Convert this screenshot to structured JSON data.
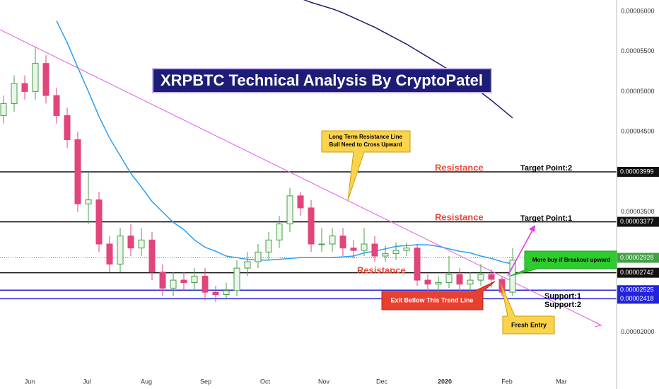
{
  "chart_data": {
    "type": "candlestick",
    "title": "XRPBTC Technical Analysis By CryptoPatel",
    "x_labels": [
      "Jun",
      "Jul",
      "Aug",
      "Sep",
      "Oct",
      "Nov",
      "Dec",
      "2020",
      "Feb",
      "Mar"
    ],
    "open": [
      4.7e-05,
      4.85e-05,
      5.1e-05,
      5e-05,
      5.35e-05,
      4.95e-05,
      4.7e-05,
      4.4e-05,
      3.6e-05,
      3.65e-05,
      3.1e-05,
      2.85e-05,
      3.2e-05,
      3.05e-05,
      3.15e-05,
      2.75e-05,
      2.55e-05,
      2.65e-05,
      2.62e-05,
      2.7e-05,
      2.5e-05,
      2.47e-05,
      2.52e-05,
      2.8e-05,
      2.88e-05,
      3e-05,
      3.15e-05,
      3.35e-05,
      3.7e-05,
      3.55e-05,
      3.1e-05,
      3.1e-05,
      3.2e-05,
      3.05e-05,
      3.02e-05,
      3.1e-05,
      2.95e-05,
      2.98e-05,
      3.02e-05,
      3.05e-05,
      2.65e-05,
      2.6e-05,
      2.62e-05,
      2.72e-05,
      2.6e-05,
      2.65e-05,
      2.72e-05,
      2.66e-05,
      2.5e-05
    ],
    "high": [
      4.95e-05,
      5.2e-05,
      5.2e-05,
      5.55e-05,
      5.45e-05,
      5.05e-05,
      4.8e-05,
      4.5e-05,
      4e-05,
      3.75e-05,
      3.2e-05,
      3.3e-05,
      3.35e-05,
      3.3e-05,
      3.25e-05,
      2.85e-05,
      2.75e-05,
      2.75e-05,
      2.8e-05,
      2.8e-05,
      2.58e-05,
      2.62e-05,
      2.9e-05,
      3e-05,
      3.1e-05,
      3.25e-05,
      3.45e-05,
      3.8e-05,
      3.75e-05,
      3.65e-05,
      3.3e-05,
      3.3e-05,
      3.3e-05,
      3.15e-05,
      3.3e-05,
      3.2e-05,
      3.08e-05,
      3.12e-05,
      3.12e-05,
      3.1e-05,
      2.72e-05,
      2.7e-05,
      2.95e-05,
      2.8e-05,
      2.75e-05,
      2.85e-05,
      2.78e-05,
      2.7e-05,
      3.05e-05
    ],
    "low": [
      4.6e-05,
      4.75e-05,
      4.9e-05,
      4.9e-05,
      4.85e-05,
      4.6e-05,
      4.3e-05,
      3.5e-05,
      3.35e-05,
      3e-05,
      2.75e-05,
      2.75e-05,
      2.95e-05,
      2.95e-05,
      2.65e-05,
      2.45e-05,
      2.45e-05,
      2.52e-05,
      2.52e-05,
      2.4e-05,
      2.38e-05,
      2.42e-05,
      2.45e-05,
      2.7e-05,
      2.8e-05,
      2.9e-05,
      3.05e-05,
      3.25e-05,
      3.45e-05,
      3e-05,
      3e-05,
      3e-05,
      2.95e-05,
      2.92e-05,
      2.95e-05,
      2.88e-05,
      2.88e-05,
      2.9e-05,
      2.95e-05,
      2.58e-05,
      2.52e-05,
      2.52e-05,
      2.55e-05,
      2.52e-05,
      2.52e-05,
      2.58e-05,
      2.56e-05,
      2.45e-05,
      2.45e-05
    ],
    "close": [
      4.85e-05,
      5.1e-05,
      5e-05,
      5.35e-05,
      4.95e-05,
      4.7e-05,
      4.4e-05,
      3.6e-05,
      3.65e-05,
      3.1e-05,
      2.85e-05,
      3.2e-05,
      3.05e-05,
      3.15e-05,
      2.75e-05,
      2.55e-05,
      2.65e-05,
      2.62e-05,
      2.7e-05,
      2.5e-05,
      2.47e-05,
      2.52e-05,
      2.8e-05,
      2.88e-05,
      3e-05,
      3.15e-05,
      3.35e-05,
      3.7e-05,
      3.55e-05,
      3.1e-05,
      3.1e-05,
      3.2e-05,
      3.05e-05,
      3.02e-05,
      3.1e-05,
      2.95e-05,
      2.98e-05,
      3.02e-05,
      3.05e-05,
      2.65e-05,
      2.6e-05,
      2.62e-05,
      2.72e-05,
      2.6e-05,
      2.65e-05,
      2.72e-05,
      2.66e-05,
      2.5e-05,
      2.9e-05
    ],
    "up_color": "#4a9e4a",
    "down_color": "#e0457b",
    "ylim": [
      1.47e-05,
      6.14e-05
    ],
    "yticks": [
      {
        "value": 6e-05,
        "label": "0.00006000"
      },
      {
        "value": 5.5e-05,
        "label": "0.00005500"
      },
      {
        "value": 5e-05,
        "label": "0.00005000"
      },
      {
        "value": 4.5e-05,
        "label": "0.00004500"
      },
      {
        "value": 3.5e-05,
        "label": "0.00003500"
      },
      {
        "value": 2e-05,
        "label": "0.00002000"
      }
    ],
    "lines": [
      {
        "color": "#2a9df4",
        "values": [
          null,
          null,
          null,
          null,
          null,
          5.88e-05,
          5.61e-05,
          5.3e-05,
          5e-05,
          4.69e-05,
          4.42e-05,
          4.2e-05,
          3.98e-05,
          3.81e-05,
          3.63e-05,
          3.5e-05,
          3.37e-05,
          3.28e-05,
          3.15e-05,
          3.06e-05,
          3.01e-05,
          2.95e-05,
          2.93e-05,
          2.91e-05,
          2.9e-05,
          2.9e-05,
          2.91e-05,
          2.92e-05,
          2.93e-05,
          2.93e-05,
          2.93e-05,
          2.93e-05,
          2.94e-05,
          2.95e-05,
          2.99e-05,
          3.01e-05,
          3.04e-05,
          3.07e-05,
          3.08e-05,
          3.09e-05,
          3.09e-05,
          3.07e-05,
          3.04e-05,
          3.01e-05,
          2.99e-05,
          2.95e-05,
          2.92e-05,
          2.88e-05,
          2.85e-05
        ]
      },
      {
        "color": "#1c1c6e",
        "values": [
          null,
          null,
          null,
          null,
          null,
          null,
          null,
          null,
          null,
          null,
          null,
          null,
          null,
          null,
          null,
          null,
          null,
          null,
          null,
          null,
          null,
          null,
          null,
          null,
          null,
          null,
          null,
          null,
          6.16e-05,
          6.11e-05,
          6.07e-05,
          6.03e-05,
          5.98e-05,
          5.92e-05,
          5.86e-05,
          5.8e-05,
          5.73e-05,
          5.66e-05,
          5.59e-05,
          5.51e-05,
          5.43e-05,
          5.35e-05,
          5.27e-05,
          5.19e-05,
          5.09e-05,
          4.99e-05,
          4.89e-05,
          4.78e-05,
          4.67e-05
        ]
      }
    ],
    "trend_line": {
      "color": "#e35ce8",
      "values": [
        5.77e-05,
        2.09e-05
      ]
    },
    "levels": [
      {
        "value": 3.999e-05,
        "label": "0.00003999",
        "color": "#111111"
      },
      {
        "value": 3.377e-05,
        "label": "0.00003377",
        "color": "#111111"
      },
      {
        "value": 2.928e-05,
        "label": "0.00002928",
        "color": "#43a047"
      },
      {
        "value": 2.742e-05,
        "label": "0.00002742",
        "color": "#111111"
      },
      {
        "value": 2.525e-05,
        "label": "0.00002525",
        "color": "#2222dd"
      },
      {
        "value": 2.418e-05,
        "label": "0.00002418",
        "color": "#2222dd"
      }
    ],
    "annotations": {
      "callout": [
        "Long Term Resistance Line",
        "Bull Need to Cross Upward"
      ],
      "resistance": [
        "Resistance",
        "Resistance",
        "Resistance"
      ],
      "target_2": "Target Point:2",
      "target_1": "Target Point:1",
      "breakout": "More buy if Breakout upward",
      "support_1": "Support:1",
      "support_2": "Support:2",
      "exit": "Exit Bellow This Trend Line",
      "entry": "Fresh Entry"
    }
  }
}
